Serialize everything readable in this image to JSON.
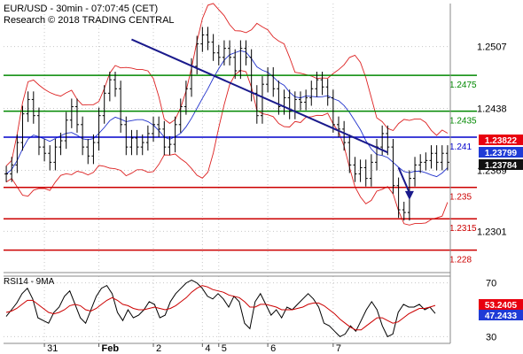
{
  "header": {
    "title_line": "EUR/USD - 30min - 07:07:45 (CET)",
    "research_line": "Research © 2018 TRADING CENTRAL"
  },
  "chart_data": [
    {
      "type": "line",
      "subtype": "candlestick-with-bollinger-bands",
      "ylim": [
        1.2255,
        1.2555
      ],
      "y_ticks": [
        1.2507,
        1.2438,
        1.2369,
        1.2301
      ],
      "x_ticks": [
        "31",
        "Feb",
        "2",
        "4",
        "5",
        "6",
        "7"
      ],
      "grid": true,
      "colors": {
        "price": "#000000",
        "bollinger_bands": "#dd2222",
        "moving_average": "#2233cc",
        "trendline": "#1a1a8c",
        "support": "#cc0000",
        "resistance": "#008800",
        "pivot": "#0000cc"
      },
      "levels": [
        {
          "label": "1.2475",
          "value": 1.2475,
          "kind": "resistance"
        },
        {
          "label": "1.2435",
          "value": 1.2435,
          "kind": "resistance"
        },
        {
          "label": "1.241",
          "value": 1.2406,
          "kind": "pivot"
        },
        {
          "label": "1.235",
          "value": 1.235,
          "kind": "support"
        },
        {
          "label": "1.2315",
          "value": 1.2315,
          "kind": "support"
        },
        {
          "label": "1.228",
          "value": 1.228,
          "kind": "support"
        }
      ],
      "price_series": [
        1.2365,
        1.2375,
        1.24,
        1.2432,
        1.2448,
        1.243,
        1.2395,
        1.2388,
        1.2378,
        1.2395,
        1.2402,
        1.2425,
        1.244,
        1.242,
        1.2395,
        1.2385,
        1.24,
        1.243,
        1.2455,
        1.247,
        1.246,
        1.242,
        1.2395,
        1.2405,
        1.2395,
        1.24,
        1.241,
        1.242,
        1.2415,
        1.2395,
        1.2398,
        1.242,
        1.244,
        1.246,
        1.2485,
        1.251,
        1.252,
        1.2512,
        1.25,
        1.2495,
        1.2505,
        1.2495,
        1.248,
        1.2505,
        1.2495,
        1.2455,
        1.243,
        1.2465,
        1.2475,
        1.246,
        1.244,
        1.245,
        1.2435,
        1.2448,
        1.2445,
        1.245,
        1.246,
        1.247,
        1.2462,
        1.245,
        1.242,
        1.2415,
        1.24,
        1.2375,
        1.2365,
        1.2372,
        1.236,
        1.2378,
        1.2395,
        1.241,
        1.2395,
        1.2352,
        1.2325,
        1.2322,
        1.236,
        1.2375,
        1.2378,
        1.238,
        1.2388,
        1.2378,
        1.2388,
        1.2378
      ],
      "price_labels": [
        {
          "label": "1.23822",
          "value": 1.23822,
          "bg": "#e8000f"
        },
        {
          "label": "1.23799",
          "value": 1.23799,
          "bg": "#1f3bd6"
        },
        {
          "label": "1.23784",
          "value": 1.23784,
          "bg": "#111111"
        }
      ],
      "trendline": {
        "from": [
          23,
          1.2515
        ],
        "to": [
          70,
          1.2389
        ]
      },
      "forecast_arrow": {
        "from": [
          72,
          1.2372
        ],
        "to": [
          74,
          1.2338
        ]
      }
    },
    {
      "type": "line",
      "title": "RSI14 - 9MA",
      "ylim": [
        25,
        75
      ],
      "y_ticks": [
        70,
        30
      ],
      "series": [
        {
          "name": "RSI14",
          "color": "#000000",
          "values": [
            45,
            50,
            55,
            62,
            66,
            58,
            44,
            42,
            40,
            48,
            52,
            60,
            64,
            54,
            44,
            40,
            50,
            60,
            66,
            68,
            62,
            48,
            42,
            50,
            44,
            46,
            50,
            56,
            54,
            44,
            46,
            56,
            62,
            66,
            70,
            72,
            70,
            66,
            60,
            58,
            62,
            58,
            52,
            60,
            56,
            40,
            36,
            56,
            62,
            54,
            46,
            50,
            44,
            52,
            50,
            54,
            58,
            62,
            58,
            52,
            40,
            38,
            34,
            30,
            32,
            38,
            34,
            42,
            50,
            56,
            50,
            38,
            30,
            32,
            48,
            54,
            52,
            52,
            54,
            50,
            52,
            47.2433
          ]
        },
        {
          "name": "9MA",
          "color": "#cc0000",
          "values": [
            48,
            49,
            51,
            54,
            57,
            57,
            54,
            51,
            48,
            47,
            48,
            50,
            53,
            54,
            53,
            50,
            49,
            51,
            54,
            57,
            59,
            57,
            54,
            53,
            51,
            50,
            50,
            51,
            52,
            51,
            50,
            51,
            53,
            56,
            59,
            63,
            66,
            68,
            67,
            65,
            64,
            63,
            61,
            60,
            59,
            56,
            52,
            52,
            54,
            54,
            53,
            52,
            50,
            50,
            50,
            51,
            52,
            54,
            55,
            55,
            53,
            50,
            47,
            43,
            40,
            37,
            35,
            35,
            38,
            41,
            44,
            44,
            42,
            40,
            41,
            44,
            47,
            49,
            51,
            51,
            52,
            53.2405
          ]
        }
      ],
      "value_labels": [
        {
          "label": "53.2405",
          "value": 53.2405,
          "bg": "#e8000f"
        },
        {
          "label": "47.2433",
          "value": 47.2433,
          "bg": "#1f3bd6"
        }
      ]
    }
  ]
}
